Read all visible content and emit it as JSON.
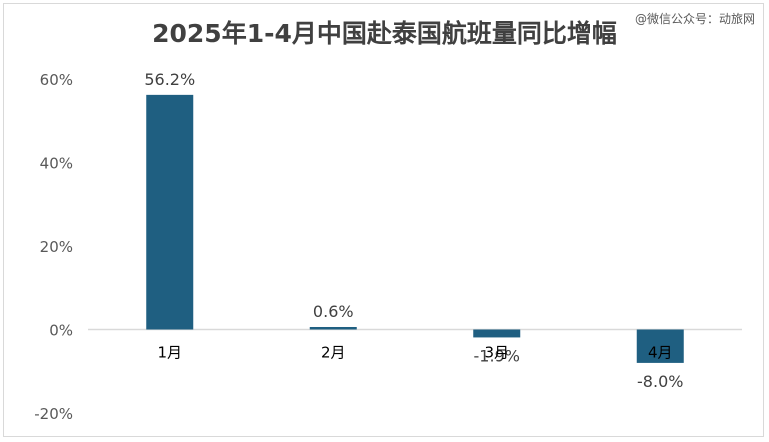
{
  "title": "2025年1-4月中国赴泰国航班量同比增幅",
  "watermark": "@微信公众号：动旅网",
  "colors": {
    "bar": "#1f5f81",
    "axis_text": "#595959",
    "grid": "#d9d9d9"
  },
  "chart_data": {
    "type": "bar",
    "title": "2025年1-4月中国赴泰国航班量同比增幅",
    "categories": [
      "1月",
      "2月",
      "3月",
      "4月"
    ],
    "values": [
      56.2,
      0.6,
      -1.9,
      -8.0
    ],
    "data_labels": [
      "56.2%",
      "0.6%",
      "-1.9%",
      "-8.0%"
    ],
    "ylim": [
      -20,
      60
    ],
    "y_ticks": [
      60,
      40,
      20,
      0,
      -20
    ],
    "y_tick_labels": [
      "60%",
      "40%",
      "20%",
      "0%",
      "-20%"
    ],
    "grid": false,
    "legend": "none"
  }
}
